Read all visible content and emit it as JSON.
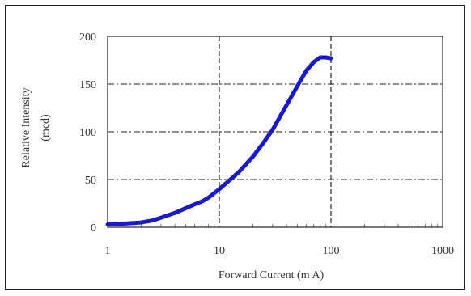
{
  "chart_data": {
    "type": "line",
    "title": "",
    "xlabel": "Forward Current (m A)",
    "ylabel_line1": "Relative Intensity",
    "ylabel_line2": "(mcd)",
    "x_scale": "log",
    "xlim": [
      1,
      1000
    ],
    "ylim": [
      0,
      200
    ],
    "x_ticks": [
      1,
      10,
      100,
      1000
    ],
    "x_tick_labels": [
      "1",
      "10",
      "100",
      "1000"
    ],
    "y_ticks": [
      0,
      50,
      100,
      150,
      200
    ],
    "y_tick_labels": [
      "0",
      "50",
      "100",
      "150",
      "200"
    ],
    "grid": "dashed",
    "series": [
      {
        "color": "#1a1acc",
        "x": [
          1,
          1.2,
          1.5,
          2,
          2.5,
          3,
          4,
          5,
          6,
          7,
          8,
          10,
          12,
          15,
          20,
          25,
          30,
          40,
          50,
          60,
          70,
          80,
          90,
          100
        ],
        "y": [
          3,
          3.5,
          4,
          5,
          7,
          10,
          15,
          20,
          24,
          27,
          31,
          40,
          48,
          58,
          74,
          89,
          102,
          128,
          148,
          164,
          173,
          178,
          178,
          177
        ]
      }
    ]
  }
}
